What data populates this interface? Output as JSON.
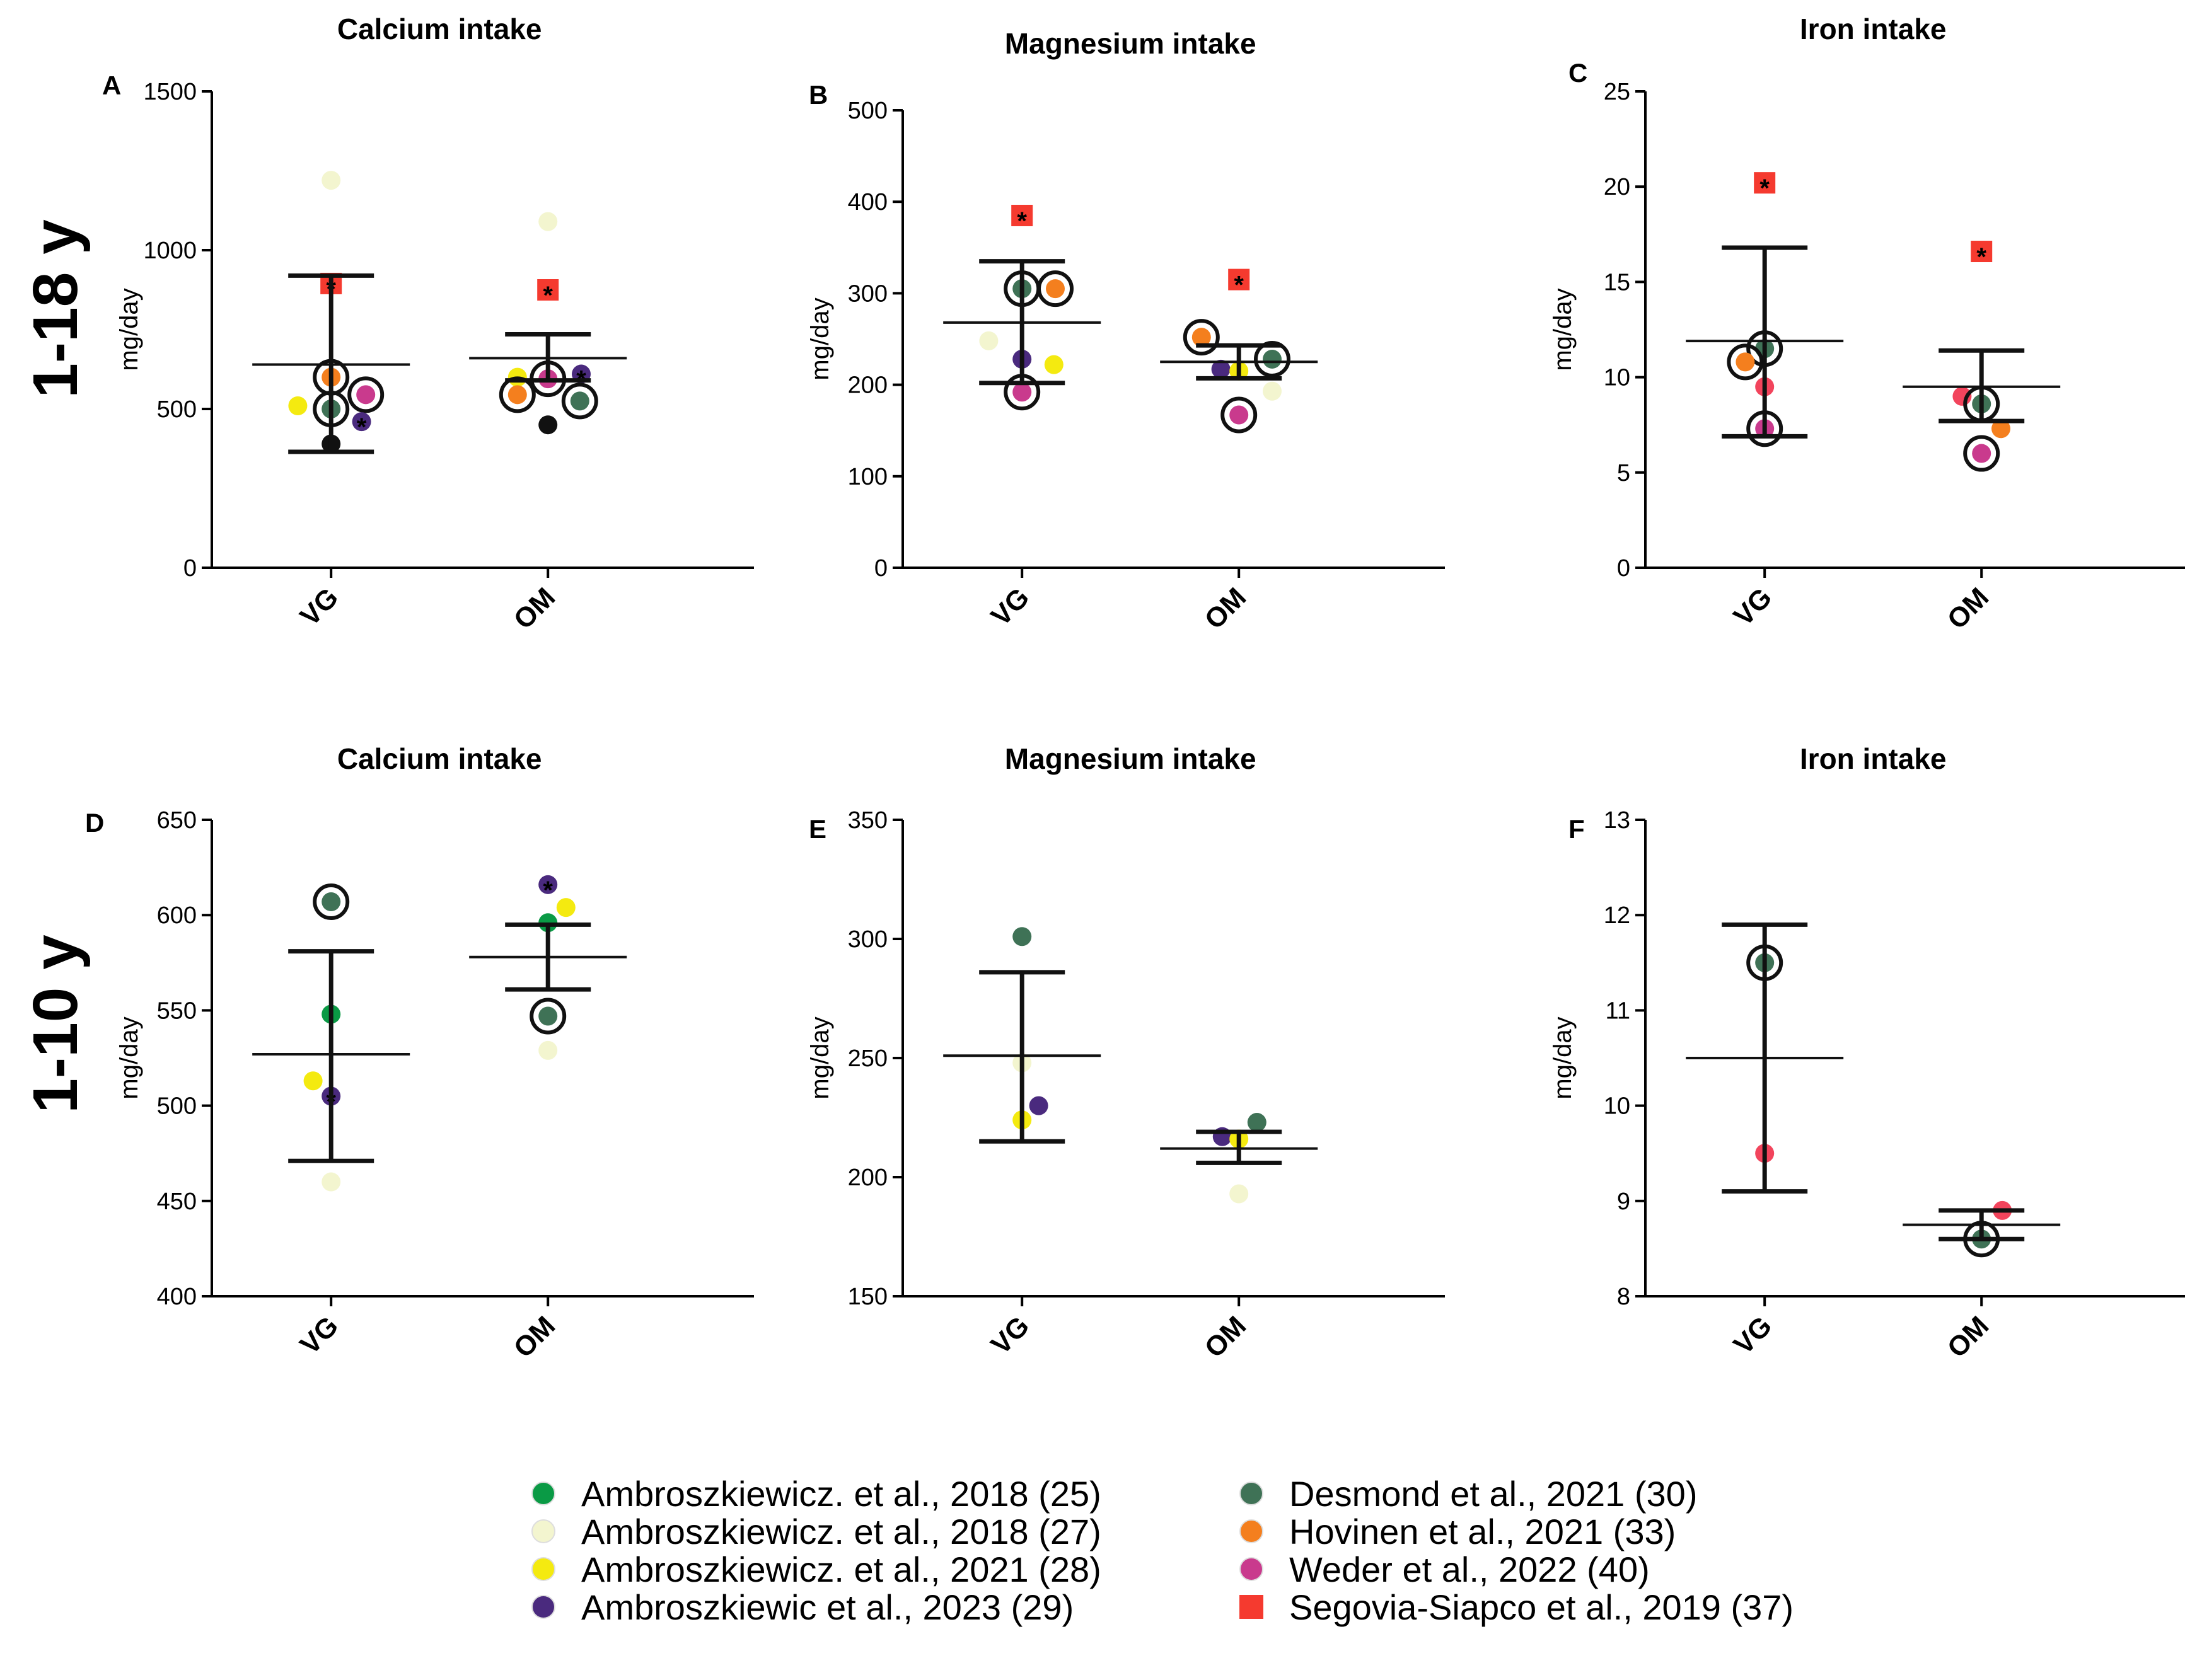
{
  "row_labels": [
    "1-18 y",
    "1-10 y"
  ],
  "legend": [
    {
      "label": "Ambroszkiewicz. et al., 2018 (25)",
      "color": "#0a9a45",
      "shape": "circle"
    },
    {
      "label": "Ambroszkiewicz. et al., 2018 (27)",
      "color": "#f3f5cf",
      "shape": "circle"
    },
    {
      "label": "Ambroszkiewicz. et al., 2021 (28)",
      "color": "#f4ea10",
      "shape": "circle"
    },
    {
      "label": "Ambroszkiewic et al., 2023 (29)",
      "color": "#4a2a7e",
      "shape": "circle"
    },
    {
      "label": "Desmond et al., 2021 (30)",
      "color": "#3f7256",
      "shape": "circle"
    },
    {
      "label": "Hovinen et al., 2021 (33)",
      "color": "#f47f1e",
      "shape": "circle"
    },
    {
      "label": "Weder et al., 2022 (40)",
      "color": "#c93a8d",
      "shape": "circle"
    },
    {
      "label": "Segovia-Siapco et al., 2019 (37)",
      "color": "#f53a2f",
      "shape": "square"
    }
  ],
  "extra_colors": {
    "black": "#111111",
    "pink_red": "#f2445c",
    "asterisk": "*"
  },
  "chart_data": [
    {
      "panel": "A",
      "type": "scatter",
      "title": "Calcium intake",
      "ylabel": "mg/day",
      "categories": [
        "VG",
        "OM"
      ],
      "ylim": [
        0,
        1500
      ],
      "yticks": [
        0,
        500,
        1000,
        1500
      ],
      "summary": [
        {
          "mean": 640,
          "upper": 920,
          "lower": 365
        },
        {
          "mean": 660,
          "upper": 735,
          "lower": 590
        }
      ],
      "points": [
        {
          "cat": 0,
          "dx": 0,
          "y": 1220,
          "color": "#f3f5cf"
        },
        {
          "cat": 0,
          "dx": 0,
          "y": 895,
          "color": "#f53a2f",
          "shape": "square",
          "star": true
        },
        {
          "cat": 0,
          "dx": 0,
          "y": 600,
          "color": "#f47f1e",
          "ring": true
        },
        {
          "cat": 0,
          "dx": 0.25,
          "y": 545,
          "color": "#c93a8d",
          "ring": true
        },
        {
          "cat": 0,
          "dx": -0.24,
          "y": 510,
          "color": "#f4ea10"
        },
        {
          "cat": 0,
          "dx": 0,
          "y": 500,
          "color": "#3f7256",
          "ring": true
        },
        {
          "cat": 0,
          "dx": 0.22,
          "y": 460,
          "color": "#4a2a7e",
          "star": true
        },
        {
          "cat": 0,
          "dx": 0,
          "y": 390,
          "color": "#111111"
        },
        {
          "cat": 1,
          "dx": 0,
          "y": 1090,
          "color": "#f3f5cf"
        },
        {
          "cat": 1,
          "dx": 0,
          "y": 875,
          "color": "#f53a2f",
          "shape": "square",
          "star": true
        },
        {
          "cat": 1,
          "dx": 0.24,
          "y": 610,
          "color": "#4a2a7e",
          "star": true
        },
        {
          "cat": 1,
          "dx": -0.22,
          "y": 600,
          "color": "#f4ea10"
        },
        {
          "cat": 1,
          "dx": 0,
          "y": 595,
          "color": "#c93a8d",
          "ring": true
        },
        {
          "cat": 1,
          "dx": -0.22,
          "y": 545,
          "color": "#f47f1e",
          "ring": true
        },
        {
          "cat": 1,
          "dx": 0.23,
          "y": 525,
          "color": "#3f7256",
          "ring": true
        },
        {
          "cat": 1,
          "dx": 0,
          "y": 450,
          "color": "#111111"
        }
      ]
    },
    {
      "panel": "B",
      "type": "scatter",
      "title": "Magnesium intake",
      "ylabel": "mg/day",
      "categories": [
        "VG",
        "OM"
      ],
      "ylim": [
        0,
        500
      ],
      "yticks": [
        0,
        100,
        200,
        300,
        400,
        500
      ],
      "summary": [
        {
          "mean": 268,
          "upper": 335,
          "lower": 202
        },
        {
          "mean": 225,
          "upper": 243,
          "lower": 207
        }
      ],
      "points": [
        {
          "cat": 0,
          "dx": 0,
          "y": 385,
          "color": "#f53a2f",
          "shape": "square",
          "star": true
        },
        {
          "cat": 0,
          "dx": 0,
          "y": 305,
          "color": "#3f7256",
          "ring": true
        },
        {
          "cat": 0,
          "dx": 0.24,
          "y": 305,
          "color": "#f47f1e",
          "ring": true
        },
        {
          "cat": 0,
          "dx": -0.24,
          "y": 248,
          "color": "#f3f5cf"
        },
        {
          "cat": 0,
          "dx": 0,
          "y": 228,
          "color": "#4a2a7e"
        },
        {
          "cat": 0,
          "dx": 0.23,
          "y": 222,
          "color": "#f4ea10"
        },
        {
          "cat": 0,
          "dx": 0,
          "y": 192,
          "color": "#c93a8d",
          "ring": true
        },
        {
          "cat": 1,
          "dx": 0,
          "y": 315,
          "color": "#f53a2f",
          "shape": "square",
          "star": true
        },
        {
          "cat": 1,
          "dx": -0.27,
          "y": 252,
          "color": "#f47f1e",
          "ring": true
        },
        {
          "cat": 1,
          "dx": 0.24,
          "y": 228,
          "color": "#3f7256",
          "ring": true
        },
        {
          "cat": 1,
          "dx": -0.13,
          "y": 217,
          "color": "#4a2a7e"
        },
        {
          "cat": 1,
          "dx": 0,
          "y": 215,
          "color": "#f4ea10"
        },
        {
          "cat": 1,
          "dx": 0.24,
          "y": 193,
          "color": "#f3f5cf"
        },
        {
          "cat": 1,
          "dx": 0,
          "y": 167,
          "color": "#c93a8d",
          "ring": true
        }
      ]
    },
    {
      "panel": "C",
      "type": "scatter",
      "title": "Iron intake",
      "ylabel": "mg/day",
      "categories": [
        "VG",
        "OM"
      ],
      "ylim": [
        0,
        25
      ],
      "yticks": [
        0,
        5,
        10,
        15,
        20,
        25
      ],
      "summary": [
        {
          "mean": 11.9,
          "upper": 16.8,
          "lower": 6.9
        },
        {
          "mean": 9.5,
          "upper": 11.4,
          "lower": 7.7
        }
      ],
      "points": [
        {
          "cat": 0,
          "dx": 0,
          "y": 20.2,
          "color": "#f53a2f",
          "shape": "square",
          "star": true
        },
        {
          "cat": 0,
          "dx": 0,
          "y": 11.5,
          "color": "#3f7256",
          "ring": true
        },
        {
          "cat": 0,
          "dx": -0.14,
          "y": 10.8,
          "color": "#f47f1e",
          "ring": true
        },
        {
          "cat": 0,
          "dx": 0,
          "y": 9.5,
          "color": "#f2445c"
        },
        {
          "cat": 0,
          "dx": 0,
          "y": 7.3,
          "color": "#c93a8d",
          "ring": true
        },
        {
          "cat": 1,
          "dx": 0,
          "y": 16.6,
          "color": "#f53a2f",
          "shape": "square",
          "star": true
        },
        {
          "cat": 1,
          "dx": -0.14,
          "y": 9.0,
          "color": "#f2445c"
        },
        {
          "cat": 1,
          "dx": 0,
          "y": 8.6,
          "color": "#3f7256",
          "ring": true
        },
        {
          "cat": 1,
          "dx": 0.14,
          "y": 7.3,
          "color": "#f47f1e"
        },
        {
          "cat": 1,
          "dx": 0,
          "y": 6.0,
          "color": "#c93a8d",
          "ring": true
        }
      ]
    },
    {
      "panel": "D",
      "type": "scatter",
      "title": "Calcium intake",
      "ylabel": "mg/day",
      "categories": [
        "VG",
        "OM"
      ],
      "ylim": [
        400,
        650
      ],
      "yticks": [
        400,
        450,
        500,
        550,
        600,
        650
      ],
      "summary": [
        {
          "mean": 527,
          "upper": 581,
          "lower": 471
        },
        {
          "mean": 578,
          "upper": 595,
          "lower": 561
        }
      ],
      "points": [
        {
          "cat": 0,
          "dx": 0,
          "y": 607,
          "color": "#3f7256",
          "ring": true
        },
        {
          "cat": 0,
          "dx": 0,
          "y": 548,
          "color": "#0a9a45"
        },
        {
          "cat": 0,
          "dx": -0.13,
          "y": 513,
          "color": "#f4ea10"
        },
        {
          "cat": 0,
          "dx": 0,
          "y": 505,
          "color": "#4a2a7e",
          "star": true
        },
        {
          "cat": 0,
          "dx": 0,
          "y": 460,
          "color": "#f3f5cf"
        },
        {
          "cat": 1,
          "dx": 0,
          "y": 616,
          "color": "#4a2a7e",
          "star": true
        },
        {
          "cat": 1,
          "dx": 0.13,
          "y": 604,
          "color": "#f4ea10"
        },
        {
          "cat": 1,
          "dx": 0,
          "y": 596,
          "color": "#0a9a45"
        },
        {
          "cat": 1,
          "dx": 0,
          "y": 547,
          "color": "#3f7256",
          "ring": true
        },
        {
          "cat": 1,
          "dx": 0,
          "y": 529,
          "color": "#f3f5cf"
        }
      ]
    },
    {
      "panel": "E",
      "type": "scatter",
      "title": "Magnesium intake",
      "ylabel": "mg/day",
      "categories": [
        "VG",
        "OM"
      ],
      "ylim": [
        150,
        350
      ],
      "yticks": [
        150,
        200,
        250,
        300,
        350
      ],
      "summary": [
        {
          "mean": 251,
          "upper": 286,
          "lower": 215
        },
        {
          "mean": 212,
          "upper": 219,
          "lower": 206
        }
      ],
      "points": [
        {
          "cat": 0,
          "dx": 0,
          "y": 301,
          "color": "#3f7256"
        },
        {
          "cat": 0,
          "dx": 0,
          "y": 248,
          "color": "#f3f5cf"
        },
        {
          "cat": 0,
          "dx": 0.12,
          "y": 230,
          "color": "#4a2a7e"
        },
        {
          "cat": 0,
          "dx": 0,
          "y": 224,
          "color": "#f4ea10"
        },
        {
          "cat": 1,
          "dx": 0.13,
          "y": 223,
          "color": "#3f7256"
        },
        {
          "cat": 1,
          "dx": -0.12,
          "y": 217,
          "color": "#4a2a7e"
        },
        {
          "cat": 1,
          "dx": 0,
          "y": 216,
          "color": "#f4ea10"
        },
        {
          "cat": 1,
          "dx": 0,
          "y": 193,
          "color": "#f3f5cf"
        }
      ]
    },
    {
      "panel": "F",
      "type": "scatter",
      "title": "Iron intake",
      "ylabel": "mg/day",
      "categories": [
        "VG",
        "OM"
      ],
      "ylim": [
        8,
        13
      ],
      "yticks": [
        8,
        9,
        10,
        11,
        12,
        13
      ],
      "summary": [
        {
          "mean": 10.5,
          "upper": 11.9,
          "lower": 9.1
        },
        {
          "mean": 8.75,
          "upper": 8.9,
          "lower": 8.6
        }
      ],
      "points": [
        {
          "cat": 0,
          "dx": 0,
          "y": 11.5,
          "color": "#3f7256",
          "ring": true
        },
        {
          "cat": 0,
          "dx": 0,
          "y": 9.5,
          "color": "#f2445c"
        },
        {
          "cat": 1,
          "dx": 0.15,
          "y": 8.9,
          "color": "#f2445c"
        },
        {
          "cat": 1,
          "dx": 0,
          "y": 8.6,
          "color": "#3f7256",
          "ring": true
        }
      ]
    }
  ]
}
